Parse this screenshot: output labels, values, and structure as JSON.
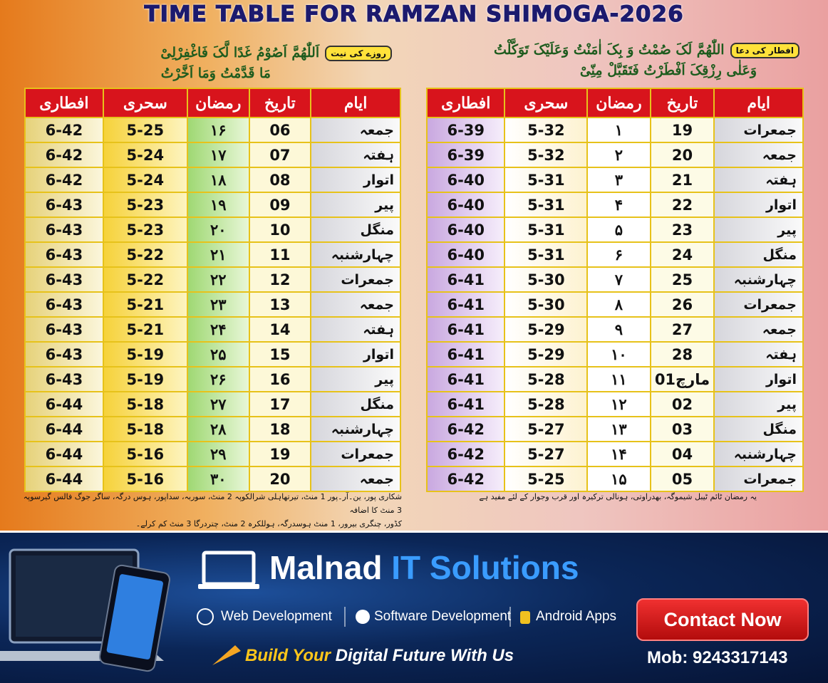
{
  "header": {
    "title": "TIME TABLE FOR RAMZAN SHIMOGA-2026"
  },
  "duas": [
    {
      "label": "افطار کی دعا",
      "lines": [
        "اللّٰھُمَّ لَکَ صُمْتُ وَ بِکَ اٰمَنْتُ وَعَلَیْکَ تَوَکَّلْتُ",
        "وَعَلٰی رِزْقِکَ اَفْطَرْتُ فَتَقَبَّلْ مِنِّیْ"
      ]
    },
    {
      "label": "روزے کی نیت",
      "lines": [
        "اَللّٰھُمَّ اَصُوْمُ غَدًا لَّکَ فَاغْفِرْلِیْ",
        "مَا قَدَّمْتُ وَمَا اَخَّرْتُ"
      ]
    }
  ],
  "tables": [
    {
      "headers": [
        "ایام",
        "تاریخ",
        "رمضان",
        "سحری",
        "افطاری"
      ],
      "rows": [
        [
          "جمعرات",
          "19",
          "۱",
          "5-32",
          "6-39"
        ],
        [
          "جمعہ",
          "20",
          "۲",
          "5-32",
          "6-39"
        ],
        [
          "ہفتہ",
          "21",
          "۳",
          "5-31",
          "6-40"
        ],
        [
          "اتوار",
          "22",
          "۴",
          "5-31",
          "6-40"
        ],
        [
          "پیر",
          "23",
          "۵",
          "5-31",
          "6-40"
        ],
        [
          "منگل",
          "24",
          "۶",
          "5-31",
          "6-40"
        ],
        [
          "چہارشنبہ",
          "25",
          "۷",
          "5-30",
          "6-41"
        ],
        [
          "جمعرات",
          "26",
          "۸",
          "5-30",
          "6-41"
        ],
        [
          "جمعہ",
          "27",
          "۹",
          "5-29",
          "6-41"
        ],
        [
          "ہفتہ",
          "28",
          "۱۰",
          "5-29",
          "6-41"
        ],
        [
          "اتوار",
          "مارچ01",
          "۱۱",
          "5-28",
          "6-41"
        ],
        [
          "پیر",
          "02",
          "۱۲",
          "5-28",
          "6-41"
        ],
        [
          "منگل",
          "03",
          "۱۳",
          "5-27",
          "6-42"
        ],
        [
          "چہارشنبہ",
          "04",
          "۱۴",
          "5-27",
          "6-42"
        ],
        [
          "جمعرات",
          "05",
          "۱۵",
          "5-25",
          "6-42"
        ]
      ]
    },
    {
      "headers": [
        "ایام",
        "تاریخ",
        "رمضان",
        "سحری",
        "افطاری"
      ],
      "rows": [
        [
          "جمعہ",
          "06",
          "۱۶",
          "5-25",
          "6-42"
        ],
        [
          "ہفتہ",
          "07",
          "۱۷",
          "5-24",
          "6-42"
        ],
        [
          "اتوار",
          "08",
          "۱۸",
          "5-24",
          "6-42"
        ],
        [
          "پیر",
          "09",
          "۱۹",
          "5-23",
          "6-43"
        ],
        [
          "منگل",
          "10",
          "۲۰",
          "5-23",
          "6-43"
        ],
        [
          "چہارشنبہ",
          "11",
          "۲۱",
          "5-22",
          "6-43"
        ],
        [
          "جمعرات",
          "12",
          "۲۲",
          "5-22",
          "6-43"
        ],
        [
          "جمعہ",
          "13",
          "۲۳",
          "5-21",
          "6-43"
        ],
        [
          "ہفتہ",
          "14",
          "۲۴",
          "5-21",
          "6-43"
        ],
        [
          "اتوار",
          "15",
          "۲۵",
          "5-19",
          "6-43"
        ],
        [
          "پیر",
          "16",
          "۲۶",
          "5-19",
          "6-43"
        ],
        [
          "منگل",
          "17",
          "۲۷",
          "5-18",
          "6-44"
        ],
        [
          "چہارشنبہ",
          "18",
          "۲۸",
          "5-18",
          "6-44"
        ],
        [
          "جمعرات",
          "19",
          "۲۹",
          "5-16",
          "6-44"
        ],
        [
          "جمعہ",
          "20",
          "۳۰",
          "5-16",
          "6-44"
        ]
      ]
    }
  ],
  "notes": [
    [
      "یہ رمضان ٹائم ٹیبل شیموگہ، بھدراوتی، ہونالی ترکیرہ اور قرب وجوار کے لئے مفید ہے"
    ],
    [
      "شکاری پور، ین۔آر۔پور 1 منٹ، تیرتھاہلی شرالکوپہ 2 منٹ، سوربہ، سداپور، ہوس درگہ، ساگر جوگ فالس گیرسوپہ 3 منٹ کا اضافہ",
      "کڈور، چنگری بیرور، 1 منٹ ہوسدرگہ، ہوللکرہ 2 منٹ، چتردرگا 3 منٹ کم کرلے۔"
    ]
  ],
  "banner": {
    "brand_main": "Malnad",
    "brand_highlight": "IT Solutions",
    "services": [
      "Web Development",
      "Software Development",
      "Android Apps"
    ],
    "tagline_highlight": "Build Your",
    "tagline_rest": "Digital Future With Us",
    "button": "Contact Now",
    "phone": "Mob: 9243317143"
  }
}
